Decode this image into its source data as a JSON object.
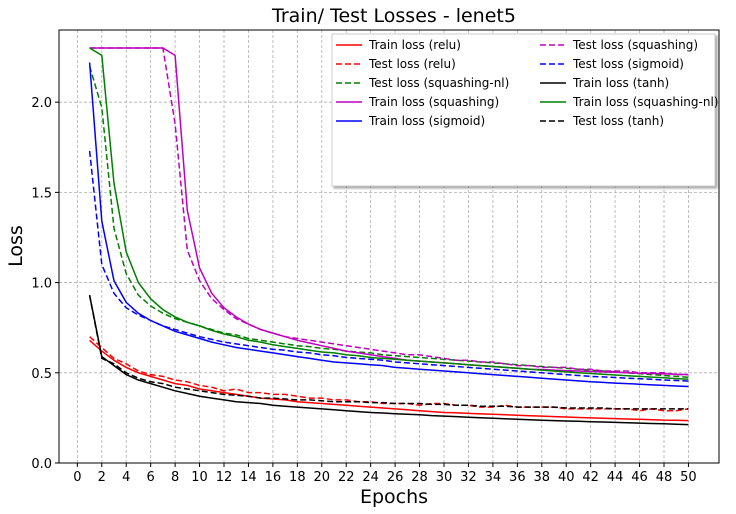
{
  "chart_data": {
    "type": "line",
    "title": "Train/ Test Losses - lenet5",
    "xlabel": "Epochs",
    "ylabel": "Loss",
    "xlim": [
      -1.5,
      52.5
    ],
    "ylim": [
      0.0,
      2.4
    ],
    "xticks": [
      0,
      2,
      4,
      6,
      8,
      10,
      12,
      14,
      16,
      18,
      20,
      22,
      24,
      26,
      28,
      30,
      32,
      34,
      36,
      38,
      40,
      42,
      44,
      46,
      48,
      50
    ],
    "yticks": [
      "0.0",
      "0.5",
      "1.0",
      "1.5",
      "2.0"
    ],
    "grid": true,
    "legend_position": "top-right",
    "x": [
      1,
      2,
      3,
      4,
      5,
      6,
      7,
      8,
      9,
      10,
      11,
      12,
      13,
      14,
      15,
      16,
      17,
      18,
      19,
      20,
      21,
      22,
      23,
      24,
      25,
      26,
      27,
      28,
      29,
      30,
      31,
      32,
      33,
      34,
      35,
      36,
      37,
      38,
      39,
      40,
      41,
      42,
      43,
      44,
      45,
      46,
      47,
      48,
      49,
      50
    ],
    "series": [
      {
        "name": "Train loss (relu)",
        "color": "#ff0000",
        "dash": "solid",
        "values": [
          0.68,
          0.62,
          0.57,
          0.53,
          0.5,
          0.48,
          0.46,
          0.44,
          0.43,
          0.41,
          0.4,
          0.39,
          0.38,
          0.37,
          0.36,
          0.355,
          0.35,
          0.34,
          0.335,
          0.33,
          0.325,
          0.32,
          0.315,
          0.31,
          0.305,
          0.3,
          0.295,
          0.29,
          0.285,
          0.28,
          0.278,
          0.275,
          0.272,
          0.27,
          0.267,
          0.265,
          0.262,
          0.26,
          0.257,
          0.255,
          0.252,
          0.25,
          0.248,
          0.246,
          0.244,
          0.242,
          0.24,
          0.238,
          0.237,
          0.235
        ]
      },
      {
        "name": "Test loss (relu)",
        "color": "#ff0000",
        "dash": "dashed",
        "values": [
          0.7,
          0.64,
          0.58,
          0.55,
          0.51,
          0.49,
          0.48,
          0.46,
          0.45,
          0.43,
          0.42,
          0.4,
          0.41,
          0.39,
          0.39,
          0.38,
          0.38,
          0.37,
          0.36,
          0.36,
          0.35,
          0.35,
          0.34,
          0.34,
          0.33,
          0.33,
          0.33,
          0.32,
          0.33,
          0.33,
          0.32,
          0.32,
          0.31,
          0.31,
          0.32,
          0.31,
          0.31,
          0.31,
          0.31,
          0.3,
          0.3,
          0.3,
          0.3,
          0.3,
          0.3,
          0.29,
          0.3,
          0.29,
          0.29,
          0.3
        ]
      },
      {
        "name": "Test loss (squashing-nl)",
        "color": "#008000",
        "dash": "dashed",
        "values": [
          2.2,
          1.97,
          1.3,
          1.05,
          0.93,
          0.87,
          0.83,
          0.8,
          0.78,
          0.76,
          0.74,
          0.72,
          0.71,
          0.69,
          0.68,
          0.67,
          0.66,
          0.65,
          0.645,
          0.635,
          0.63,
          0.62,
          0.615,
          0.61,
          0.6,
          0.595,
          0.59,
          0.585,
          0.58,
          0.575,
          0.57,
          0.565,
          0.56,
          0.555,
          0.55,
          0.545,
          0.54,
          0.535,
          0.53,
          0.525,
          0.52,
          0.515,
          0.51,
          0.505,
          0.5,
          0.495,
          0.49,
          0.485,
          0.48,
          0.475
        ]
      },
      {
        "name": "Train loss (squashing)",
        "color": "#bf00bf",
        "dash": "solid",
        "values": [
          2.3,
          2.3,
          2.3,
          2.3,
          2.3,
          2.3,
          2.3,
          2.26,
          1.4,
          1.08,
          0.94,
          0.86,
          0.81,
          0.77,
          0.74,
          0.72,
          0.7,
          0.68,
          0.665,
          0.65,
          0.635,
          0.62,
          0.61,
          0.6,
          0.59,
          0.58,
          0.57,
          0.565,
          0.56,
          0.555,
          0.55,
          0.545,
          0.54,
          0.535,
          0.53,
          0.525,
          0.52,
          0.518,
          0.515,
          0.512,
          0.51,
          0.507,
          0.505,
          0.503,
          0.5,
          0.498,
          0.496,
          0.494,
          0.492,
          0.49
        ]
      },
      {
        "name": "Train loss (sigmoid)",
        "color": "#0000ff",
        "dash": "solid",
        "values": [
          2.22,
          1.34,
          1.01,
          0.89,
          0.83,
          0.79,
          0.76,
          0.73,
          0.71,
          0.69,
          0.67,
          0.655,
          0.64,
          0.63,
          0.62,
          0.61,
          0.6,
          0.59,
          0.58,
          0.57,
          0.56,
          0.555,
          0.55,
          0.545,
          0.54,
          0.53,
          0.525,
          0.52,
          0.515,
          0.51,
          0.505,
          0.5,
          0.495,
          0.49,
          0.485,
          0.48,
          0.475,
          0.47,
          0.465,
          0.46,
          0.455,
          0.45,
          0.447,
          0.443,
          0.44,
          0.437,
          0.433,
          0.43,
          0.427,
          0.424
        ]
      },
      {
        "name": "Test loss (squashing)",
        "color": "#bf00bf",
        "dash": "dashed",
        "values": [
          2.3,
          2.3,
          2.3,
          2.3,
          2.3,
          2.3,
          2.3,
          1.88,
          1.18,
          1.01,
          0.91,
          0.85,
          0.8,
          0.77,
          0.74,
          0.72,
          0.7,
          0.69,
          0.68,
          0.67,
          0.66,
          0.65,
          0.64,
          0.63,
          0.62,
          0.61,
          0.6,
          0.6,
          0.59,
          0.58,
          0.57,
          0.57,
          0.56,
          0.56,
          0.55,
          0.54,
          0.54,
          0.53,
          0.53,
          0.53,
          0.52,
          0.52,
          0.51,
          0.51,
          0.51,
          0.5,
          0.5,
          0.5,
          0.49,
          0.49
        ]
      },
      {
        "name": "Test loss (sigmoid)",
        "color": "#0000ff",
        "dash": "dashed",
        "values": [
          1.73,
          1.1,
          0.94,
          0.86,
          0.82,
          0.79,
          0.76,
          0.74,
          0.72,
          0.7,
          0.685,
          0.67,
          0.66,
          0.65,
          0.64,
          0.63,
          0.625,
          0.615,
          0.61,
          0.6,
          0.595,
          0.585,
          0.58,
          0.575,
          0.57,
          0.56,
          0.555,
          0.55,
          0.545,
          0.54,
          0.535,
          0.53,
          0.525,
          0.52,
          0.515,
          0.51,
          0.505,
          0.5,
          0.495,
          0.49,
          0.485,
          0.48,
          0.477,
          0.474,
          0.47,
          0.467,
          0.464,
          0.46,
          0.457,
          0.454
        ]
      },
      {
        "name": "Train loss (tanh)",
        "color": "#000000",
        "dash": "solid",
        "values": [
          0.93,
          0.59,
          0.54,
          0.49,
          0.46,
          0.44,
          0.42,
          0.4,
          0.385,
          0.37,
          0.36,
          0.35,
          0.34,
          0.335,
          0.33,
          0.32,
          0.315,
          0.31,
          0.305,
          0.3,
          0.295,
          0.29,
          0.285,
          0.28,
          0.277,
          0.273,
          0.27,
          0.267,
          0.263,
          0.26,
          0.257,
          0.254,
          0.251,
          0.248,
          0.245,
          0.242,
          0.24,
          0.237,
          0.235,
          0.233,
          0.231,
          0.229,
          0.227,
          0.225,
          0.223,
          0.221,
          0.219,
          0.217,
          0.215,
          0.213
        ]
      },
      {
        "name": "Train loss (squashing-nl)",
        "color": "#008000",
        "dash": "solid",
        "values": [
          2.3,
          2.26,
          1.55,
          1.17,
          1.0,
          0.91,
          0.85,
          0.81,
          0.78,
          0.76,
          0.735,
          0.715,
          0.7,
          0.68,
          0.67,
          0.655,
          0.645,
          0.635,
          0.625,
          0.615,
          0.61,
          0.6,
          0.595,
          0.585,
          0.58,
          0.575,
          0.57,
          0.565,
          0.56,
          0.555,
          0.55,
          0.545,
          0.54,
          0.535,
          0.53,
          0.525,
          0.52,
          0.515,
          0.51,
          0.505,
          0.5,
          0.496,
          0.492,
          0.488,
          0.484,
          0.48,
          0.476,
          0.472,
          0.468,
          0.464
        ]
      },
      {
        "name": "Test loss (tanh)",
        "color": "#000000",
        "dash": "dashed",
        "values": [
          0.93,
          0.58,
          0.55,
          0.5,
          0.47,
          0.45,
          0.44,
          0.42,
          0.41,
          0.4,
          0.39,
          0.38,
          0.375,
          0.37,
          0.36,
          0.36,
          0.355,
          0.35,
          0.35,
          0.345,
          0.34,
          0.34,
          0.34,
          0.335,
          0.335,
          0.33,
          0.33,
          0.33,
          0.325,
          0.325,
          0.32,
          0.32,
          0.315,
          0.315,
          0.315,
          0.31,
          0.31,
          0.31,
          0.31,
          0.305,
          0.305,
          0.305,
          0.305,
          0.3,
          0.3,
          0.3,
          0.3,
          0.3,
          0.3,
          0.3
        ]
      }
    ]
  }
}
